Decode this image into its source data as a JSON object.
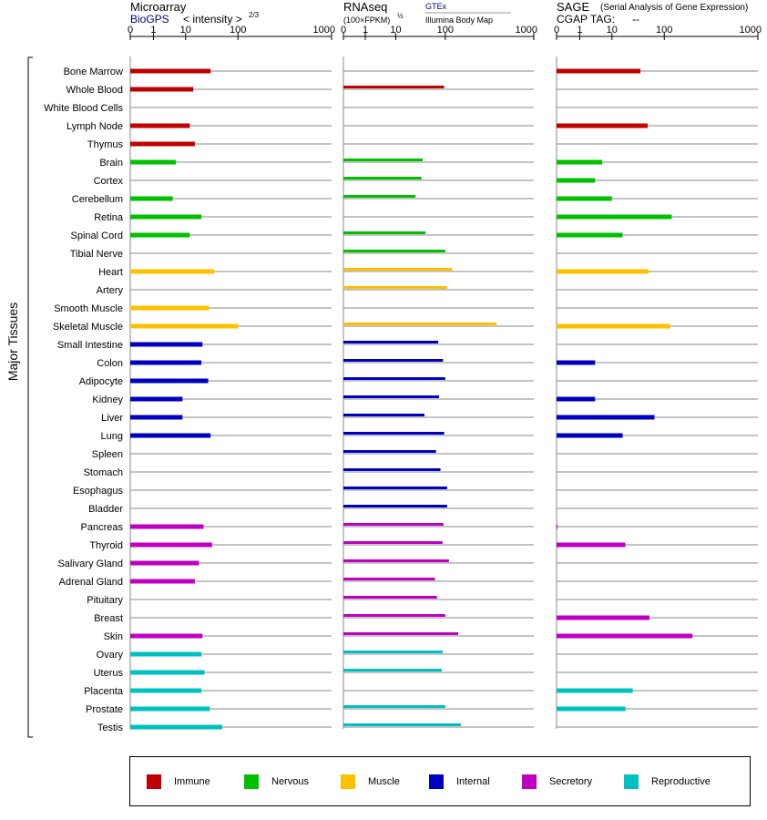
{
  "chart_data": {
    "type": "bar",
    "ylabel": "Major Tissues",
    "categories": [
      "Bone Marrow",
      "Whole Blood",
      "White Blood Cells",
      "Lymph Node",
      "Thymus",
      "Brain",
      "Cortex",
      "Cerebellum",
      "Retina",
      "Spinal Cord",
      "Tibial Nerve",
      "Heart",
      "Artery",
      "Smooth Muscle",
      "Skeletal Muscle",
      "Small Intestine",
      "Colon",
      "Adipocyte",
      "Kidney",
      "Liver",
      "Lung",
      "Spleen",
      "Stomach",
      "Esophagus",
      "Bladder",
      "Pancreas",
      "Thyroid",
      "Salivary Gland",
      "Adrenal Gland",
      "Pituitary",
      "Breast",
      "Skin",
      "Ovary",
      "Uterus",
      "Placenta",
      "Prostate",
      "Testis"
    ],
    "groups": [
      "Immune",
      "Immune",
      "Immune",
      "Immune",
      "Immune",
      "Nervous",
      "Nervous",
      "Nervous",
      "Nervous",
      "Nervous",
      "Nervous",
      "Muscle",
      "Muscle",
      "Muscle",
      "Muscle",
      "Internal",
      "Internal",
      "Internal",
      "Internal",
      "Internal",
      "Internal",
      "Internal",
      "Internal",
      "Internal",
      "Internal",
      "Secretory",
      "Secretory",
      "Secretory",
      "Secretory",
      "Secretory",
      "Secretory",
      "Secretory",
      "Reproductive",
      "Reproductive",
      "Reproductive",
      "Reproductive",
      "Reproductive"
    ],
    "group_colors": {
      "Immune": "#c00000",
      "Nervous": "#00c000",
      "Muscle": "#ffc000",
      "Internal": "#0000c0",
      "Secretory": "#c000c0",
      "Reproductive": "#00c0c0"
    },
    "panels": [
      {
        "title": "Microarray",
        "source": "BioGPS",
        "scale_label": "< intensity >",
        "scale_exponent": "2/3",
        "ticks": [
          "0",
          "1",
          "10",
          "100",
          "1000"
        ],
        "values": [
          30,
          14,
          null,
          12,
          15,
          5,
          null,
          4,
          20,
          12,
          null,
          35,
          null,
          28,
          100,
          21,
          20,
          27,
          8,
          8,
          30,
          null,
          null,
          null,
          null,
          22,
          32,
          18,
          15,
          null,
          null,
          21,
          20,
          23,
          20,
          29,
          50
        ]
      },
      {
        "title": "RNAseq",
        "scale_label": "(100×FPKM)",
        "scale_exponent": "½",
        "sources": [
          "GTEx",
          "Illumina Body Map"
        ],
        "ticks": [
          "0",
          "1",
          "10",
          "100",
          "1000"
        ],
        "values": [
          null,
          95,
          null,
          null,
          null,
          35,
          33,
          25,
          null,
          40,
          100,
          120,
          105,
          null,
          380,
          72,
          90,
          100,
          75,
          38,
          95,
          65,
          80,
          105,
          105,
          92,
          88,
          110,
          62,
          68,
          100,
          140,
          88,
          85,
          null,
          100,
          150
        ]
      },
      {
        "title": "SAGE",
        "subtitle": "(Serial Analysis of Gene Expression)",
        "cgap_label": "CGAP TAG:",
        "cgap_value": "--",
        "ticks": [
          "0",
          "1",
          "10",
          "100",
          "1000"
        ],
        "values": [
          35,
          null,
          null,
          48,
          null,
          5,
          3,
          10,
          120,
          16,
          null,
          50,
          null,
          null,
          115,
          null,
          3,
          null,
          3,
          65,
          16,
          null,
          null,
          null,
          null,
          0.02,
          18,
          null,
          null,
          null,
          52,
          200,
          null,
          null,
          25,
          18,
          null
        ]
      }
    ],
    "legend": [
      "Immune",
      "Nervous",
      "Muscle",
      "Internal",
      "Secretory",
      "Reproductive"
    ],
    "legend_placement": "bottom"
  }
}
